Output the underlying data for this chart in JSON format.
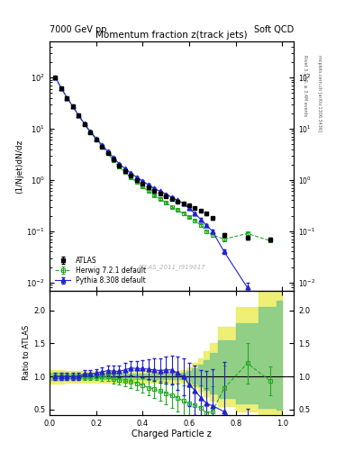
{
  "title_left": "7000 GeV pp",
  "title_right": "Soft QCD",
  "plot_title": "Momentum fraction z(track jets)",
  "xlabel": "Charged Particle z",
  "ylabel_main": "(1/Njet)dN/dz",
  "ylabel_ratio": "Ratio to ATLAS",
  "right_label_top": "Rivet 3.1.10, ≥ 3.4M events",
  "right_label_bottom": "mcplots.cern.ch [arXiv:1306.3436]",
  "watermark": "ATLAS_2011_I919017",
  "atlas_label": "ATLAS",
  "herwig_label": "Herwig 7.2.1 default",
  "pythia_label": "Pythia 8.308 default",
  "atlas_x": [
    0.025,
    0.05,
    0.075,
    0.1,
    0.125,
    0.15,
    0.175,
    0.2,
    0.225,
    0.25,
    0.275,
    0.3,
    0.325,
    0.35,
    0.375,
    0.4,
    0.425,
    0.45,
    0.475,
    0.5,
    0.525,
    0.55,
    0.575,
    0.6,
    0.625,
    0.65,
    0.675,
    0.7,
    0.75,
    0.85,
    0.95
  ],
  "atlas_y": [
    100,
    62,
    40,
    27,
    18,
    12,
    8.5,
    6.2,
    4.5,
    3.3,
    2.5,
    1.9,
    1.5,
    1.2,
    1.0,
    0.85,
    0.72,
    0.62,
    0.55,
    0.48,
    0.42,
    0.38,
    0.35,
    0.32,
    0.28,
    0.25,
    0.22,
    0.18,
    0.085,
    0.075,
    0.07
  ],
  "atlas_yerr": [
    3,
    2,
    1.2,
    0.8,
    0.55,
    0.38,
    0.27,
    0.2,
    0.15,
    0.11,
    0.08,
    0.065,
    0.053,
    0.043,
    0.036,
    0.031,
    0.027,
    0.024,
    0.021,
    0.019,
    0.017,
    0.016,
    0.015,
    0.014,
    0.013,
    0.012,
    0.011,
    0.01,
    0.006,
    0.006,
    0.006
  ],
  "herwig_x": [
    0.025,
    0.05,
    0.075,
    0.1,
    0.125,
    0.15,
    0.175,
    0.2,
    0.225,
    0.25,
    0.275,
    0.3,
    0.325,
    0.35,
    0.375,
    0.4,
    0.425,
    0.45,
    0.475,
    0.5,
    0.525,
    0.55,
    0.575,
    0.6,
    0.625,
    0.65,
    0.675,
    0.7,
    0.75,
    0.85,
    0.95
  ],
  "herwig_y": [
    100,
    62,
    40,
    27,
    18,
    12,
    8.5,
    6.2,
    4.5,
    3.3,
    2.4,
    1.8,
    1.4,
    1.1,
    0.9,
    0.74,
    0.6,
    0.5,
    0.43,
    0.36,
    0.3,
    0.26,
    0.22,
    0.19,
    0.16,
    0.13,
    0.1,
    0.085,
    0.07,
    0.09,
    0.065
  ],
  "herwig_yerr": [
    3,
    2,
    1.2,
    0.8,
    0.55,
    0.38,
    0.27,
    0.2,
    0.15,
    0.11,
    0.08,
    0.062,
    0.05,
    0.04,
    0.033,
    0.028,
    0.024,
    0.02,
    0.018,
    0.016,
    0.014,
    0.012,
    0.011,
    0.01,
    0.009,
    0.008,
    0.007,
    0.006,
    0.005,
    0.006,
    0.005
  ],
  "pythia_x": [
    0.025,
    0.05,
    0.075,
    0.1,
    0.125,
    0.15,
    0.175,
    0.2,
    0.225,
    0.25,
    0.275,
    0.3,
    0.325,
    0.35,
    0.375,
    0.4,
    0.425,
    0.45,
    0.475,
    0.5,
    0.525,
    0.55,
    0.575,
    0.6,
    0.625,
    0.65,
    0.675,
    0.7,
    0.75,
    0.85
  ],
  "pythia_y": [
    100,
    62,
    40,
    27,
    18,
    12.5,
    8.8,
    6.5,
    4.8,
    3.6,
    2.7,
    2.05,
    1.65,
    1.35,
    1.12,
    0.95,
    0.8,
    0.68,
    0.6,
    0.53,
    0.46,
    0.4,
    0.35,
    0.28,
    0.22,
    0.17,
    0.13,
    0.1,
    0.04,
    0.008
  ],
  "pythia_yerr": [
    3,
    2,
    1.2,
    0.8,
    0.55,
    0.38,
    0.27,
    0.2,
    0.15,
    0.12,
    0.09,
    0.07,
    0.056,
    0.046,
    0.038,
    0.032,
    0.028,
    0.024,
    0.021,
    0.019,
    0.017,
    0.015,
    0.014,
    0.012,
    0.01,
    0.009,
    0.008,
    0.007,
    0.004,
    0.002
  ],
  "atlas_color": "#000000",
  "herwig_color": "#22aa22",
  "pythia_color": "#2222cc",
  "herwig_ratio_y": [
    1.0,
    1.0,
    1.0,
    1.0,
    1.0,
    1.0,
    1.0,
    1.0,
    1.0,
    1.0,
    0.96,
    0.95,
    0.93,
    0.92,
    0.9,
    0.87,
    0.83,
    0.81,
    0.78,
    0.75,
    0.71,
    0.68,
    0.63,
    0.59,
    0.57,
    0.52,
    0.45,
    0.47,
    0.82,
    1.2,
    0.93
  ],
  "herwig_ratio_yerr": [
    0.05,
    0.05,
    0.05,
    0.05,
    0.05,
    0.05,
    0.05,
    0.05,
    0.06,
    0.06,
    0.07,
    0.07,
    0.08,
    0.09,
    0.1,
    0.11,
    0.12,
    0.14,
    0.15,
    0.17,
    0.19,
    0.21,
    0.23,
    0.26,
    0.3,
    0.34,
    0.37,
    0.38,
    0.35,
    0.3,
    0.22
  ],
  "pythia_ratio_y": [
    1.0,
    1.0,
    1.0,
    1.0,
    1.0,
    1.04,
    1.04,
    1.05,
    1.07,
    1.09,
    1.08,
    1.08,
    1.1,
    1.13,
    1.12,
    1.12,
    1.11,
    1.1,
    1.09,
    1.1,
    1.1,
    1.05,
    1.0,
    0.88,
    0.79,
    0.68,
    0.59,
    0.56,
    0.47,
    0.11
  ],
  "pythia_ratio_yerr": [
    0.05,
    0.05,
    0.05,
    0.05,
    0.05,
    0.06,
    0.06,
    0.06,
    0.07,
    0.08,
    0.08,
    0.09,
    0.1,
    0.11,
    0.12,
    0.13,
    0.15,
    0.17,
    0.18,
    0.2,
    0.22,
    0.25,
    0.28,
    0.32,
    0.37,
    0.42,
    0.5,
    0.55,
    0.75,
    0.4
  ],
  "band_x": [
    0.0,
    0.025,
    0.05,
    0.075,
    0.1,
    0.125,
    0.15,
    0.175,
    0.2,
    0.225,
    0.25,
    0.275,
    0.3,
    0.325,
    0.35,
    0.375,
    0.4,
    0.425,
    0.45,
    0.475,
    0.5,
    0.525,
    0.55,
    0.575,
    0.6,
    0.625,
    0.65,
    0.675,
    0.7,
    0.75,
    0.85,
    0.95,
    1.0
  ],
  "green_lo": [
    0.95,
    0.95,
    0.95,
    0.96,
    0.96,
    0.96,
    0.96,
    0.96,
    0.96,
    0.96,
    0.96,
    0.96,
    0.96,
    0.96,
    0.96,
    0.96,
    0.96,
    0.96,
    0.96,
    0.96,
    0.96,
    0.96,
    0.96,
    0.96,
    0.93,
    0.9,
    0.85,
    0.8,
    0.75,
    0.68,
    0.6,
    0.52,
    0.5
  ],
  "green_hi": [
    1.05,
    1.05,
    1.05,
    1.04,
    1.04,
    1.04,
    1.04,
    1.04,
    1.04,
    1.04,
    1.04,
    1.04,
    1.04,
    1.04,
    1.04,
    1.04,
    1.04,
    1.04,
    1.04,
    1.04,
    1.04,
    1.04,
    1.04,
    1.05,
    1.08,
    1.12,
    1.18,
    1.25,
    1.35,
    1.55,
    1.8,
    2.05,
    2.15
  ],
  "yellow_lo": [
    0.9,
    0.9,
    0.9,
    0.91,
    0.91,
    0.91,
    0.91,
    0.91,
    0.91,
    0.91,
    0.91,
    0.91,
    0.91,
    0.91,
    0.91,
    0.91,
    0.91,
    0.91,
    0.91,
    0.91,
    0.91,
    0.91,
    0.91,
    0.91,
    0.88,
    0.83,
    0.77,
    0.7,
    0.63,
    0.55,
    0.47,
    0.4,
    0.38
  ],
  "yellow_hi": [
    1.1,
    1.1,
    1.1,
    1.09,
    1.09,
    1.09,
    1.09,
    1.09,
    1.09,
    1.09,
    1.09,
    1.09,
    1.09,
    1.09,
    1.09,
    1.09,
    1.09,
    1.09,
    1.09,
    1.09,
    1.09,
    1.09,
    1.09,
    1.1,
    1.14,
    1.2,
    1.28,
    1.38,
    1.5,
    1.75,
    2.05,
    2.3,
    2.4
  ],
  "ylim_main": [
    0.007,
    500
  ],
  "ylim_ratio": [
    0.42,
    2.3
  ],
  "xlim": [
    0.0,
    1.05
  ],
  "ratio_yticks": [
    0.5,
    1.0,
    1.5,
    2.0
  ]
}
